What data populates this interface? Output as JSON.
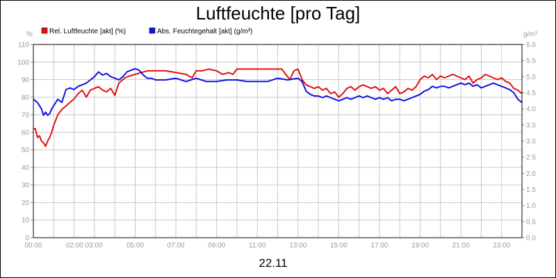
{
  "chart_data": {
    "type": "line",
    "title": "Luftfeuchte [pro Tag]",
    "date_label": "22.11",
    "y_left": {
      "unit": "%",
      "min": 0,
      "max": 110,
      "ticks": [
        "0",
        "10",
        "20",
        "30",
        "40",
        "50",
        "60",
        "70",
        "80",
        "90",
        "100",
        "110"
      ]
    },
    "y_right": {
      "unit": "g/m³",
      "min": 0,
      "max": 6.0,
      "ticks": [
        "0.0",
        "0.5",
        "1.0",
        "1.5",
        "2.0",
        "2.5",
        "3.0",
        "3.5",
        "4.0",
        "4.5",
        "5.0",
        "5.5",
        "6.0"
      ]
    },
    "x_range_hours": [
      0,
      24
    ],
    "x_ticks": [
      {
        "h": 0,
        "label": "00:00"
      },
      {
        "h": 2.5,
        "label": "02:00 03:00"
      },
      {
        "h": 5,
        "label": "05:00"
      },
      {
        "h": 7,
        "label": "07:00"
      },
      {
        "h": 9,
        "label": "09:00"
      },
      {
        "h": 11,
        "label": "11:00"
      },
      {
        "h": 13,
        "label": "13:00"
      },
      {
        "h": 15,
        "label": "15:00"
      },
      {
        "h": 17,
        "label": "17:00"
      },
      {
        "h": 19,
        "label": "19:00"
      },
      {
        "h": 21,
        "label": "21:00"
      },
      {
        "h": 23,
        "label": "23:00"
      }
    ],
    "grid": true,
    "legend_position": "top-left",
    "series": [
      {
        "name": "Rel. Luftfeuchte [akt] (%)",
        "axis": "left",
        "color": "#e01010",
        "x": [
          0,
          0.1,
          0.2,
          0.3,
          0.4,
          0.5,
          0.6,
          0.7,
          0.8,
          0.9,
          1.0,
          1.2,
          1.4,
          1.6,
          1.8,
          2.0,
          2.2,
          2.4,
          2.6,
          2.8,
          3.0,
          3.2,
          3.4,
          3.6,
          3.8,
          4.0,
          4.2,
          4.4,
          4.5,
          4.7,
          5.0,
          5.3,
          5.6,
          6.0,
          6.5,
          7.0,
          7.5,
          7.8,
          8.0,
          8.3,
          8.6,
          9.0,
          9.3,
          9.6,
          9.8,
          10.0,
          10.5,
          11.0,
          11.5,
          12.0,
          12.2,
          12.4,
          12.6,
          12.8,
          13.0,
          13.2,
          13.4,
          13.6,
          13.8,
          14.0,
          14.2,
          14.4,
          14.6,
          14.8,
          15.0,
          15.2,
          15.4,
          15.6,
          15.8,
          16.0,
          16.2,
          16.4,
          16.6,
          16.8,
          17.0,
          17.2,
          17.4,
          17.6,
          17.8,
          18.0,
          18.2,
          18.4,
          18.6,
          18.8,
          19.0,
          19.2,
          19.4,
          19.6,
          19.8,
          20.0,
          20.2,
          20.4,
          20.6,
          20.8,
          21.0,
          21.2,
          21.4,
          21.6,
          21.8,
          22.0,
          22.2,
          22.4,
          22.6,
          22.8,
          23.0,
          23.2,
          23.4,
          23.6,
          23.8,
          24.0
        ],
        "values": [
          62,
          62,
          57,
          58,
          55,
          54,
          52,
          55,
          57,
          60,
          64,
          70,
          73,
          75,
          77,
          79,
          82,
          84,
          80,
          84,
          85,
          86,
          84,
          83,
          85,
          81,
          88,
          90,
          91,
          92,
          93,
          94,
          95,
          95,
          95,
          94,
          93,
          91,
          95,
          95,
          96,
          95,
          93,
          94,
          93,
          96,
          96,
          96,
          96,
          96,
          96,
          93,
          90,
          95,
          96,
          90,
          87,
          86,
          85,
          86,
          84,
          85,
          82,
          83,
          80,
          82,
          85,
          86,
          84,
          86,
          87,
          86,
          85,
          86,
          84,
          85,
          82,
          84,
          86,
          82,
          83,
          85,
          84,
          86,
          90,
          92,
          91,
          93,
          90,
          92,
          91,
          92,
          93,
          92,
          91,
          90,
          92,
          88,
          90,
          91,
          93,
          92,
          91,
          90,
          91,
          89,
          88,
          85,
          84,
          82
        ]
      },
      {
        "name": "Abs. Feuchtegehalt [akt] (g/m³)",
        "axis": "right",
        "color": "#1010e0",
        "x": [
          0,
          0.2,
          0.4,
          0.5,
          0.6,
          0.7,
          0.8,
          0.9,
          1.0,
          1.2,
          1.4,
          1.6,
          1.8,
          2.0,
          2.2,
          2.4,
          2.6,
          2.8,
          3.0,
          3.2,
          3.4,
          3.6,
          3.8,
          4.0,
          4.2,
          4.4,
          4.6,
          4.8,
          5.0,
          5.2,
          5.4,
          5.6,
          5.8,
          6.0,
          6.5,
          7.0,
          7.5,
          8.0,
          8.5,
          9.0,
          9.5,
          10.0,
          10.5,
          11.0,
          11.5,
          12.0,
          12.5,
          13.0,
          13.2,
          13.4,
          13.6,
          13.8,
          14.0,
          14.2,
          14.4,
          14.6,
          14.8,
          15.0,
          15.2,
          15.4,
          15.6,
          15.8,
          16.0,
          16.2,
          16.4,
          16.6,
          16.8,
          17.0,
          17.2,
          17.4,
          17.6,
          17.8,
          18.0,
          18.2,
          18.4,
          18.6,
          18.8,
          19.0,
          19.2,
          19.4,
          19.6,
          19.8,
          20.0,
          20.2,
          20.4,
          20.6,
          20.8,
          21.0,
          21.2,
          21.4,
          21.6,
          21.8,
          22.0,
          22.2,
          22.4,
          22.6,
          22.8,
          23.0,
          23.2,
          23.4,
          23.6,
          23.8,
          24.0
        ],
        "values": [
          4.3,
          4.2,
          4.0,
          3.8,
          3.9,
          3.8,
          3.85,
          4.0,
          4.1,
          4.3,
          4.2,
          4.6,
          4.65,
          4.6,
          4.7,
          4.75,
          4.8,
          4.9,
          5.0,
          5.15,
          5.05,
          5.1,
          5.0,
          4.95,
          4.9,
          5.0,
          5.15,
          5.2,
          5.25,
          5.2,
          5.05,
          4.95,
          4.95,
          4.9,
          4.9,
          4.95,
          4.85,
          4.95,
          4.85,
          4.85,
          4.9,
          4.9,
          4.85,
          4.85,
          4.85,
          4.95,
          4.9,
          4.95,
          4.85,
          4.55,
          4.45,
          4.4,
          4.4,
          4.35,
          4.4,
          4.35,
          4.3,
          4.25,
          4.3,
          4.35,
          4.3,
          4.35,
          4.4,
          4.35,
          4.4,
          4.35,
          4.3,
          4.35,
          4.3,
          4.35,
          4.25,
          4.3,
          4.3,
          4.25,
          4.3,
          4.35,
          4.4,
          4.45,
          4.55,
          4.6,
          4.7,
          4.65,
          4.7,
          4.7,
          4.65,
          4.7,
          4.75,
          4.8,
          4.75,
          4.8,
          4.7,
          4.75,
          4.65,
          4.7,
          4.75,
          4.8,
          4.75,
          4.7,
          4.65,
          4.6,
          4.5,
          4.3,
          4.2
        ]
      }
    ]
  }
}
